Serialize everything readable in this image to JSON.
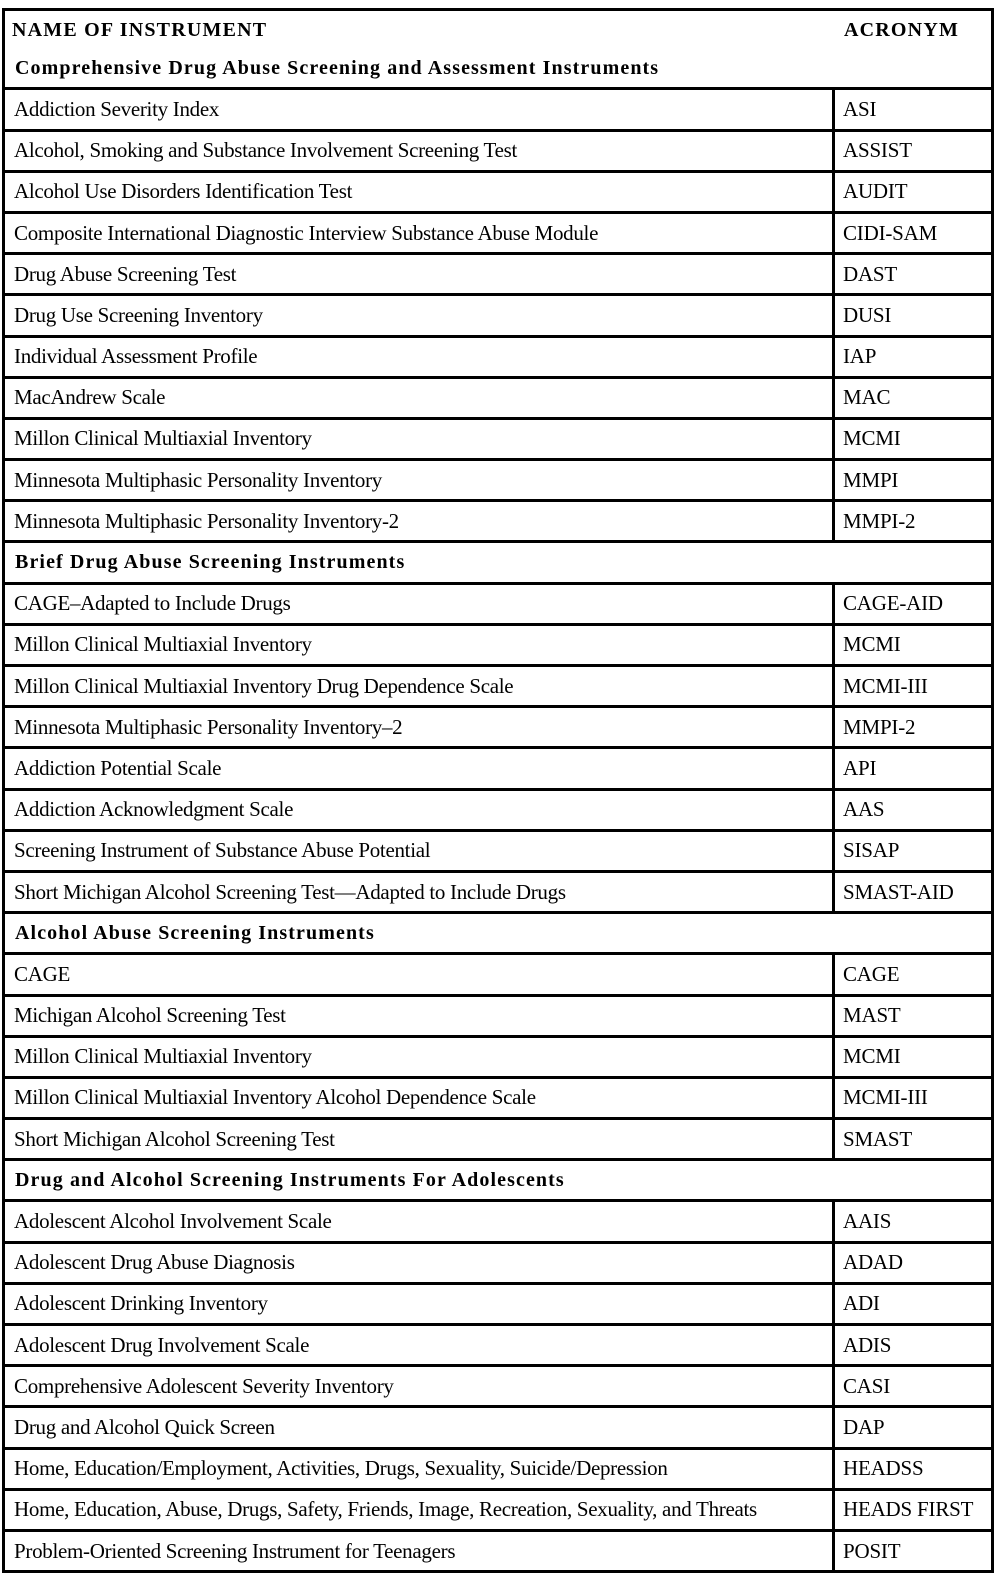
{
  "table": {
    "columns": [
      "NAME OF INSTRUMENT",
      "ACRONYM"
    ],
    "sections": [
      {
        "title": "Comprehensive Drug Abuse Screening and Assessment Instruments",
        "rows": [
          {
            "name": "Addiction Severity Index",
            "acronym": "ASI"
          },
          {
            "name": "Alcohol, Smoking and Substance Involvement Screening Test",
            "acronym": "ASSIST"
          },
          {
            "name": "Alcohol Use Disorders Identification Test",
            "acronym": "AUDIT"
          },
          {
            "name": "Composite International Diagnostic Interview Substance Abuse Module",
            "acronym": "CIDI-SAM"
          },
          {
            "name": "Drug Abuse Screening Test",
            "acronym": "DAST"
          },
          {
            "name": "Drug Use Screening Inventory",
            "acronym": "DUSI"
          },
          {
            "name": "Individual Assessment Profile",
            "acronym": "IAP"
          },
          {
            "name": "MacAndrew Scale",
            "acronym": "MAC"
          },
          {
            "name": "Millon Clinical Multiaxial Inventory",
            "acronym": "MCMI"
          },
          {
            "name": "Minnesota Multiphasic Personality Inventory",
            "acronym": "MMPI"
          },
          {
            "name": "Minnesota Multiphasic Personality Inventory-2",
            "acronym": "MMPI-2"
          }
        ]
      },
      {
        "title": "Brief Drug Abuse Screening Instruments",
        "rows": [
          {
            "name": "CAGE–Adapted to Include Drugs",
            "acronym": "CAGE-AID"
          },
          {
            "name": "Millon Clinical Multiaxial Inventory",
            "acronym": "MCMI"
          },
          {
            "name": "Millon Clinical Multiaxial Inventory Drug Dependence Scale",
            "acronym": "MCMI-III"
          },
          {
            "name": "Minnesota Multiphasic Personality Inventory–2",
            "acronym": "MMPI-2"
          },
          {
            "name": "Addiction Potential Scale",
            "acronym": "API"
          },
          {
            "name": "Addiction Acknowledgment Scale",
            "acronym": "AAS"
          },
          {
            "name": "Screening Instrument of Substance Abuse Potential",
            "acronym": "SISAP"
          },
          {
            "name": "Short Michigan Alcohol Screening Test—Adapted to Include Drugs",
            "acronym": "SMAST-AID"
          }
        ]
      },
      {
        "title": "Alcohol Abuse Screening Instruments",
        "rows": [
          {
            "name": "CAGE",
            "acronym": "CAGE"
          },
          {
            "name": "Michigan Alcohol Screening Test",
            "acronym": "MAST"
          },
          {
            "name": "Millon Clinical Multiaxial Inventory",
            "acronym": "MCMI"
          },
          {
            "name": "Millon Clinical Multiaxial Inventory Alcohol Dependence Scale",
            "acronym": "MCMI-III"
          },
          {
            "name": "Short Michigan Alcohol Screening Test",
            "acronym": "SMAST"
          }
        ]
      },
      {
        "title": "Drug and Alcohol Screening Instruments For Adolescents",
        "rows": [
          {
            "name": "Adolescent Alcohol Involvement Scale",
            "acronym": "AAIS"
          },
          {
            "name": "Adolescent Drug Abuse Diagnosis",
            "acronym": "ADAD"
          },
          {
            "name": "Adolescent Drinking Inventory",
            "acronym": "ADI"
          },
          {
            "name": "Adolescent Drug Involvement Scale",
            "acronym": "ADIS"
          },
          {
            "name": "Comprehensive Adolescent Severity Inventory",
            "acronym": "CASI"
          },
          {
            "name": "Drug and Alcohol Quick Screen",
            "acronym": "DAP"
          },
          {
            "name": "Home, Education/Employment, Activities, Drugs, Sexuality, Suicide/Depression",
            "acronym": "HEADSS"
          },
          {
            "name": "Home, Education, Abuse, Drugs, Safety, Friends, Image, Recreation, Sexuality, and Threats",
            "acronym": "HEADS FIRST"
          },
          {
            "name": "Problem-Oriented Screening Instrument for Teenagers",
            "acronym": "POSIT"
          }
        ]
      }
    ]
  }
}
